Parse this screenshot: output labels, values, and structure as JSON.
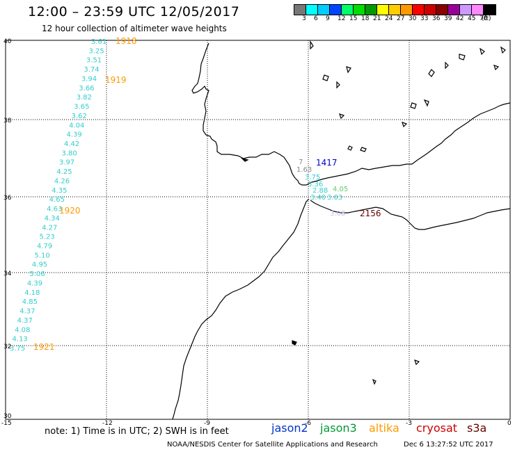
{
  "header": {
    "title": "12:00 – 23:59 UTC 12/05/2017",
    "subtitle": "12 hour collection of altimeter wave heights"
  },
  "colorbar": {
    "colors": [
      "#777777",
      "#00ffff",
      "#00ccff",
      "#0044ff",
      "#00ff66",
      "#00dd00",
      "#009900",
      "#ffff00",
      "#ffcc00",
      "#ff9900",
      "#ff0000",
      "#cc0000",
      "#880000",
      "#990099",
      "#cc99ff",
      "#ff88ff",
      "#000000"
    ],
    "labels": [
      "3",
      "6",
      "9",
      "12",
      "15",
      "18",
      "21",
      "24",
      "27",
      "30",
      "33",
      "36",
      "39",
      "42",
      "45",
      "70",
      "(ft)"
    ]
  },
  "map": {
    "lon_ticks": [
      "-15",
      "-12",
      "-9",
      "-6",
      "-3",
      "0"
    ],
    "lat_ticks": [
      "40",
      "38",
      "36",
      "34",
      "32",
      "30"
    ]
  },
  "track_west": {
    "values": [
      "3.61",
      "3.25",
      "3.51",
      "3.74",
      "3.94",
      "3.66",
      "3.82",
      "3.65",
      "3.62",
      "4.04",
      "4.39",
      "4.42",
      "3.80",
      "3.97",
      "4.25",
      "4.26",
      "4.35",
      "4.65",
      "4.63",
      "4.34",
      "4.27",
      "5.23",
      "4.79",
      "5.10",
      "4.95",
      "5.06",
      "4.39",
      "4.18",
      "4.85",
      "4.37",
      "4.37",
      "4.08",
      "4.13",
      "3.75"
    ],
    "times": [
      "1918",
      "1919",
      "1920",
      "1921"
    ]
  },
  "track_gibraltar": {
    "values": [
      "7",
      "1.63",
      "3.75",
      "3.36",
      "2.88",
      "3.40",
      "4.05",
      "3.03"
    ],
    "time": "1417",
    "time_color": "#0000cc"
  },
  "track_alboran": {
    "values": [
      "3.08"
    ],
    "time": "2156",
    "time_color": "#660000"
  },
  "footer": {
    "note": "note:  1) Time is in UTC;  2) SWH is in feet",
    "credit": "NOAA/NESDIS Center for Satellite Applications and Research",
    "timestamp": "Dec  6 13:27:52 UTC 2017"
  },
  "legend": {
    "jason2": "jason2",
    "jason3": "jason3",
    "altika": "altika",
    "cryosat": "cryosat",
    "s3a": "s3a"
  }
}
